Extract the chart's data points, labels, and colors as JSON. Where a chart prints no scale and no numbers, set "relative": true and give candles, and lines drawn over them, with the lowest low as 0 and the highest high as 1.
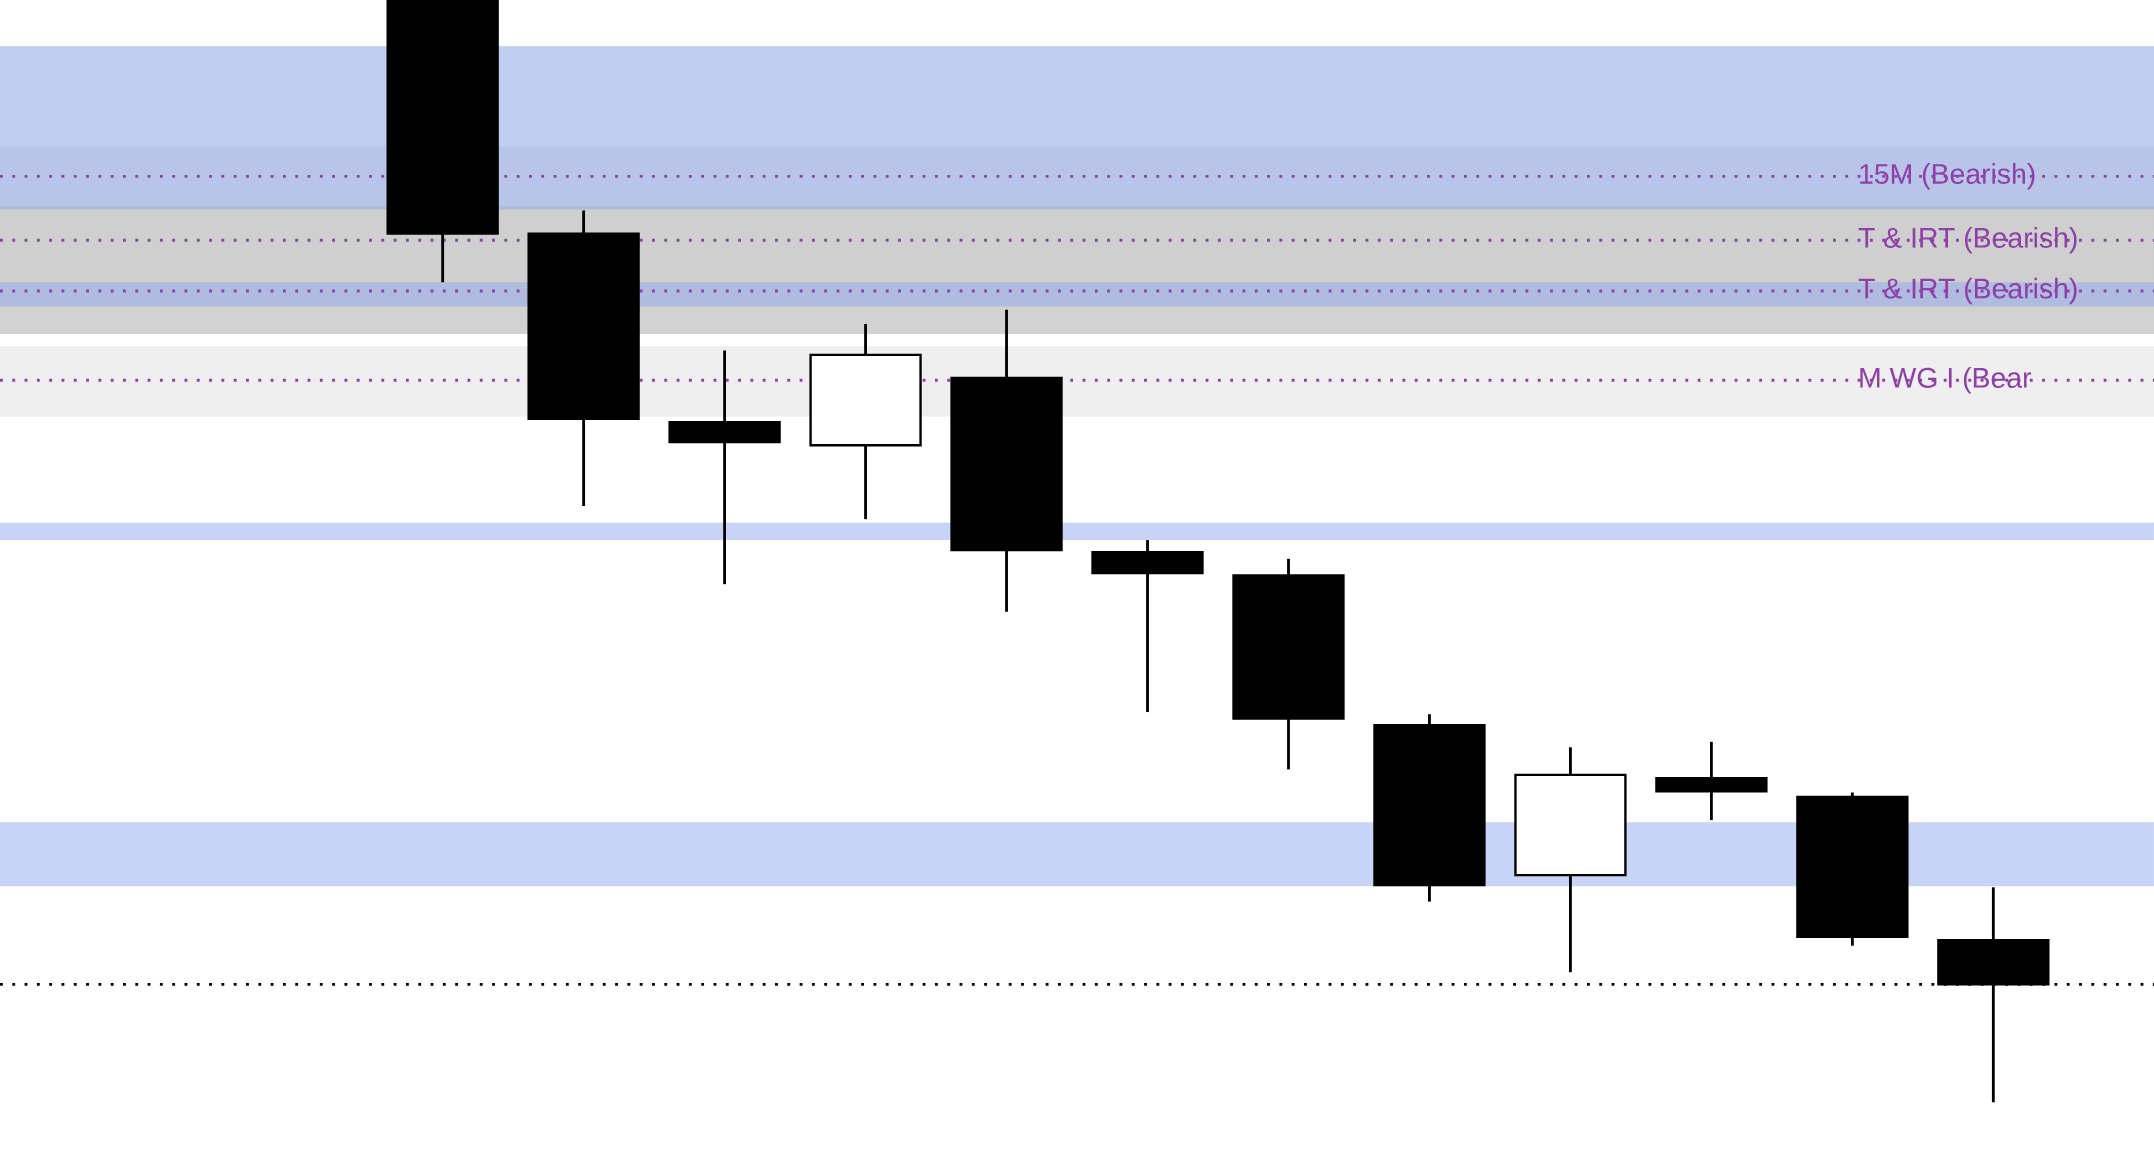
{
  "chart_data": {
    "type": "candlestick",
    "relative": true,
    "categories": [
      null,
      null,
      null,
      null,
      null,
      null,
      null,
      null,
      null,
      null,
      null,
      null,
      null
    ],
    "ohlc": [
      null,
      [
        1.0,
        1.0,
        0.744,
        0.788
      ],
      [
        0.788,
        0.809,
        0.541,
        0.62
      ],
      [
        0.617,
        0.682,
        0.47,
        0.599
      ],
      [
        0.596,
        0.706,
        0.529,
        0.678
      ],
      [
        0.657,
        0.719,
        0.445,
        0.501
      ],
      [
        0.499,
        0.51,
        0.354,
        0.48
      ],
      [
        0.478,
        0.493,
        0.302,
        0.348
      ],
      [
        0.342,
        0.352,
        0.182,
        0.197
      ],
      [
        0.206,
        0.322,
        0.118,
        0.297
      ],
      [
        0.294,
        0.327,
        0.256,
        0.282
      ],
      [
        0.277,
        0.281,
        0.142,
        0.15
      ],
      [
        0.147,
        0.195,
        0.0,
        0.107
      ]
    ],
    "bands": [
      {
        "axis": "y",
        "from": 0.722,
        "to": 0.958,
        "color": "#e6e6e6"
      },
      {
        "axis": "y",
        "from": 0.697,
        "to": 0.867,
        "color": "#d0d0d0"
      },
      {
        "axis": "y",
        "from": 0.697,
        "to": 0.813,
        "color": "#bdbdbd"
      },
      {
        "axis": "y",
        "from": 0.622,
        "to": 0.686,
        "color": "#e0e0e0"
      },
      {
        "axis": "y",
        "from": 0.81,
        "to": 0.958,
        "color": "#91a7f2"
      },
      {
        "axis": "y",
        "from": 0.722,
        "to": 0.744,
        "color": "#91a7f2"
      },
      {
        "axis": "y",
        "from": 0.51,
        "to": 0.526,
        "color": "#91a7f2"
      },
      {
        "axis": "y",
        "from": 0.196,
        "to": 0.254,
        "color": "#91a7f2"
      }
    ],
    "ref_lines": [
      {
        "axis": "y",
        "value": 0.84,
        "label": "15M (Bearish)",
        "color": "#8e3fa8",
        "line_style": "dotted"
      },
      {
        "axis": "y",
        "value": 0.782,
        "label": "T & IRT (Bearish)",
        "color": "#8e3fa8",
        "line_style": "dotted"
      },
      {
        "axis": "y",
        "value": 0.736,
        "label": "T & IRT (Bearish)",
        "color": "#8e3fa8",
        "line_style": "dotted"
      },
      {
        "axis": "y",
        "value": 0.655,
        "label": "M WG I (Bear",
        "color": "#8e3fa8",
        "line_style": "dotted"
      },
      {
        "axis": "y",
        "value": 0.107,
        "color": "#000000",
        "line_style": "dotted"
      }
    ]
  }
}
